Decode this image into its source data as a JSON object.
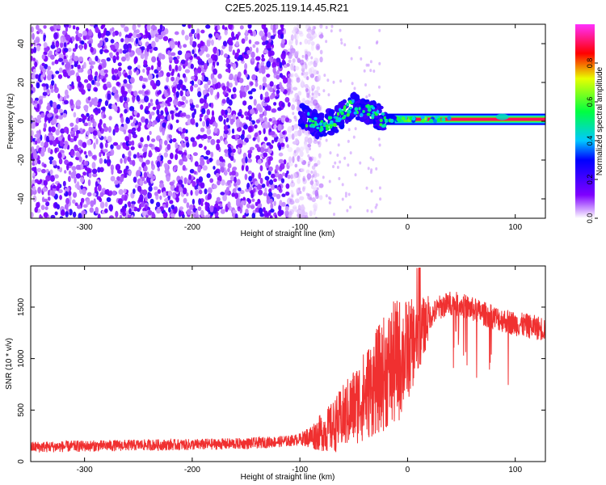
{
  "title": "C2E5.2025.119.14.45.R21",
  "chart_data": [
    {
      "type": "heatmap",
      "xlabel": "Height of straight line (km)",
      "ylabel": "Frequency (Hz)",
      "xlim": [
        -350,
        128
      ],
      "ylim": [
        -50,
        50
      ],
      "xticks": [
        -300,
        -200,
        -100,
        0,
        100
      ],
      "yticks": [
        -40,
        -20,
        0,
        20,
        40
      ],
      "colorbar": {
        "label": "Normalized spectral amplitude",
        "range": [
          0,
          1
        ],
        "ticks": [
          "0.0",
          "0.2",
          "0.4",
          "0.6",
          "0.8"
        ],
        "stops": [
          {
            "v": 0.0,
            "color": "#ffffff"
          },
          {
            "v": 0.12,
            "color": "#7f00ff"
          },
          {
            "v": 0.3,
            "color": "#0000ff"
          },
          {
            "v": 0.4,
            "color": "#00c8ff"
          },
          {
            "v": 0.55,
            "color": "#00ff40"
          },
          {
            "v": 0.72,
            "color": "#e8ff00"
          },
          {
            "v": 0.85,
            "color": "#ff0000"
          },
          {
            "v": 1.0,
            "color": "#ff30ff"
          }
        ]
      },
      "regions": [
        {
          "name": "noise",
          "x_range": [
            -350,
            -110
          ],
          "f_range": [
            -50,
            50
          ],
          "amplitude": 0.15
        },
        {
          "name": "onset",
          "x_range": [
            -100,
            -20
          ],
          "f_center": [
            3,
            -2,
            0,
            8,
            5,
            0
          ],
          "amplitude": 0.5
        },
        {
          "name": "carrier",
          "x_range": [
            -20,
            128
          ],
          "f_center": 1,
          "amplitude": 0.9
        }
      ]
    },
    {
      "type": "line",
      "xlabel": "Height of straight line (km)",
      "ylabel": "SNR (10 * v/v)",
      "xlim": [
        -350,
        128
      ],
      "ylim": [
        0,
        1900
      ],
      "xticks": [
        -300,
        -200,
        -100,
        0,
        100
      ],
      "yticks": [
        0,
        500,
        1000,
        1500
      ],
      "series": [
        {
          "color": "#f03030",
          "x": [
            -350,
            -300,
            -250,
            -200,
            -150,
            -110,
            -90,
            -70,
            -55,
            -40,
            -30,
            -20,
            -10,
            0,
            10,
            20,
            30,
            40,
            50,
            60,
            70,
            80,
            90,
            100,
            110,
            120,
            128
          ],
          "y": [
            140,
            150,
            160,
            165,
            175,
            200,
            240,
            330,
            480,
            640,
            760,
            880,
            960,
            1080,
            1220,
            1400,
            1500,
            1540,
            1520,
            1480,
            1440,
            1400,
            1370,
            1340,
            1320,
            1300,
            1290
          ]
        }
      ]
    }
  ]
}
